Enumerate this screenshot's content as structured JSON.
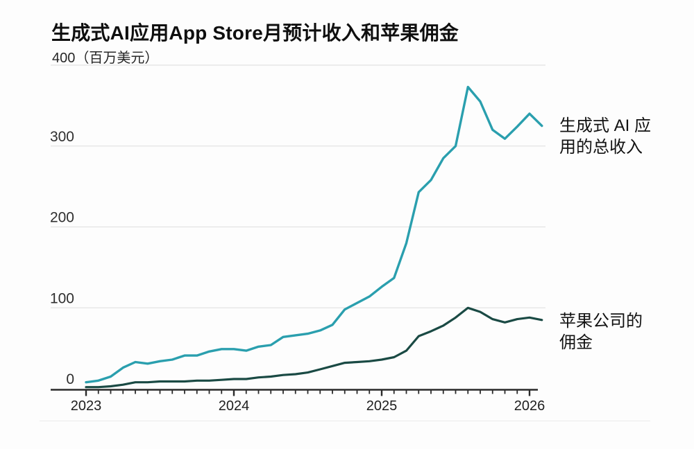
{
  "chart_data": {
    "type": "line",
    "title": "生成式AI应用App Store月预计收入和苹果佣金",
    "y_top_label": "400",
    "unit_label": "（百万美元）",
    "x_start": "2023-01",
    "x_interval": "monthly",
    "x_tick_labels": [
      "2023",
      "2024",
      "2025",
      "2026"
    ],
    "y_ticks": [
      0,
      100,
      200,
      300,
      400
    ],
    "ylim": [
      0,
      400
    ],
    "grid": "horizontal",
    "legend_position": "right-of-line-labels",
    "series": [
      {
        "name": "生成式 AI 应用的总收入",
        "color": "#2a9fae",
        "values": [
          8,
          10,
          15,
          26,
          33,
          31,
          34,
          36,
          41,
          41,
          46,
          49,
          49,
          47,
          52,
          54,
          64,
          66,
          68,
          72,
          79,
          98,
          106,
          114,
          126,
          137,
          180,
          243,
          258,
          285,
          300,
          373,
          355,
          320,
          309,
          324,
          340,
          325
        ]
      },
      {
        "name": "苹果公司的佣金",
        "color": "#1a4a44",
        "values": [
          2,
          2,
          3,
          5,
          8,
          8,
          9,
          9,
          9,
          10,
          10,
          11,
          12,
          12,
          14,
          15,
          17,
          18,
          20,
          24,
          28,
          32,
          33,
          34,
          36,
          39,
          47,
          65,
          71,
          78,
          88,
          100,
          95,
          86,
          82,
          86,
          88,
          85
        ]
      }
    ],
    "colors": {
      "axis": "#2a2a2a",
      "gridline": "#e3e3e3",
      "tick_label": "#2e2e2e"
    }
  },
  "right_labels": {
    "revenue": [
      "生成式 AI 应",
      "用的总收入"
    ],
    "commission": [
      "苹果公司的",
      "佣金"
    ]
  }
}
